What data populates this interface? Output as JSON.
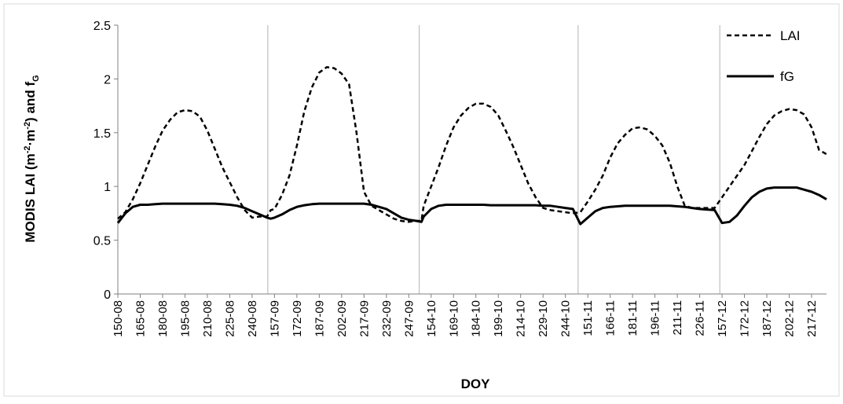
{
  "chart_data": {
    "type": "line",
    "xlabel": "DOY",
    "ylabel_main": "MODIS LAI (m",
    "ylabel_sup1": "-2",
    "ylabel_mid": "·m",
    "ylabel_sup2": "-2",
    "ylabel_end": ") and f",
    "ylabel_sub": "G",
    "ylim": [
      0,
      2.5
    ],
    "yticks": [
      "0",
      "0.5",
      "1",
      "1.5",
      "2",
      "2.5"
    ],
    "ytick_values": [
      0,
      0.5,
      1,
      1.5,
      2,
      2.5
    ],
    "legend_position": "top-right",
    "xticks": [
      "150-08",
      "165-08",
      "180-08",
      "195-08",
      "210-08",
      "225-08",
      "240-08",
      "157-09",
      "172-09",
      "187-09",
      "202-09",
      "217-09",
      "232-09",
      "247-09",
      "154-10",
      "169-10",
      "184-10",
      "199-10",
      "214-10",
      "229-10",
      "244-10",
      "151-11",
      "166-11",
      "181-11",
      "196-11",
      "211-11",
      "226-11",
      "157-12",
      "172-12",
      "187-12",
      "202-12",
      "217-12"
    ],
    "xtick_index": [
      0,
      3,
      6,
      9,
      12,
      15,
      18,
      21,
      24,
      27,
      30,
      33,
      36,
      39,
      42,
      45,
      48,
      51,
      54,
      57,
      60,
      63,
      66,
      69,
      72,
      75,
      78,
      81,
      84,
      87,
      90,
      93
    ],
    "x_max_index": 95,
    "year_separators_index": [
      20.1,
      40.4,
      61.7,
      80.7
    ],
    "series": [
      {
        "name": "LAI",
        "style": "dashed",
        "x": [
          0,
          1,
          2,
          3,
          4,
          5,
          6,
          7,
          8,
          9,
          10,
          11,
          12,
          13,
          14,
          15,
          16,
          17,
          18,
          19,
          20,
          20.5,
          21,
          22,
          23,
          24,
          25,
          26,
          27,
          28,
          29,
          30,
          31,
          32,
          33,
          34,
          35,
          36,
          37,
          38,
          39,
          40,
          40.7,
          41,
          42,
          43,
          44,
          45,
          46,
          47,
          48,
          49,
          50,
          51,
          52,
          53,
          54,
          55,
          56,
          57,
          58,
          59,
          60,
          61,
          62,
          63,
          64,
          65,
          66,
          67,
          68,
          69,
          70,
          71,
          72,
          73,
          74,
          75,
          76,
          77,
          78,
          79,
          80,
          81,
          82,
          83,
          84,
          85,
          86,
          87,
          88,
          89,
          90,
          91,
          92,
          93,
          94,
          95
        ],
        "y": [
          0.7,
          0.76,
          0.88,
          1.03,
          1.2,
          1.37,
          1.52,
          1.62,
          1.69,
          1.71,
          1.7,
          1.65,
          1.52,
          1.35,
          1.18,
          1.04,
          0.9,
          0.78,
          0.71,
          0.72,
          0.72,
          0.78,
          0.79,
          0.92,
          1.1,
          1.38,
          1.7,
          1.92,
          2.06,
          2.11,
          2.1,
          2.05,
          1.95,
          1.5,
          0.95,
          0.82,
          0.78,
          0.74,
          0.7,
          0.68,
          0.67,
          0.68,
          0.68,
          0.82,
          1.0,
          1.18,
          1.38,
          1.55,
          1.66,
          1.73,
          1.77,
          1.77,
          1.74,
          1.66,
          1.52,
          1.37,
          1.2,
          1.03,
          0.9,
          0.8,
          0.78,
          0.77,
          0.76,
          0.75,
          0.76,
          0.86,
          0.97,
          1.1,
          1.27,
          1.4,
          1.48,
          1.54,
          1.55,
          1.53,
          1.47,
          1.38,
          1.22,
          1.0,
          0.82,
          0.8,
          0.8,
          0.8,
          0.8,
          0.9,
          1.0,
          1.1,
          1.2,
          1.33,
          1.46,
          1.58,
          1.66,
          1.7,
          1.72,
          1.71,
          1.67,
          1.55,
          1.34,
          1.3
        ]
      },
      {
        "name": "fG",
        "style": "solid",
        "x": [
          0,
          1,
          2,
          3,
          4,
          5,
          6,
          7,
          8,
          9,
          10,
          11,
          12,
          13,
          14,
          15,
          16,
          17,
          18,
          19,
          20,
          20.5,
          21,
          22,
          23,
          24,
          25,
          26,
          27,
          28,
          29,
          30,
          31,
          32,
          33,
          34,
          35,
          36,
          37,
          38,
          39,
          40,
          40.7,
          41,
          42,
          43,
          44,
          45,
          46,
          47,
          48,
          49,
          50,
          51,
          52,
          53,
          54,
          55,
          56,
          57,
          58,
          59,
          60,
          61,
          62,
          63,
          64,
          65,
          66,
          67,
          68,
          69,
          70,
          71,
          72,
          73,
          74,
          75,
          76,
          77,
          78,
          79,
          80,
          81,
          82,
          83,
          84,
          85,
          86,
          87,
          88,
          89,
          90,
          91,
          92,
          93,
          94,
          95
        ],
        "y": [
          0.66,
          0.75,
          0.81,
          0.83,
          0.83,
          0.835,
          0.84,
          0.84,
          0.84,
          0.84,
          0.84,
          0.84,
          0.84,
          0.84,
          0.835,
          0.83,
          0.82,
          0.8,
          0.77,
          0.74,
          0.71,
          0.7,
          0.71,
          0.74,
          0.78,
          0.81,
          0.825,
          0.835,
          0.84,
          0.84,
          0.84,
          0.84,
          0.84,
          0.84,
          0.84,
          0.83,
          0.81,
          0.79,
          0.75,
          0.71,
          0.69,
          0.68,
          0.67,
          0.72,
          0.79,
          0.82,
          0.83,
          0.83,
          0.83,
          0.83,
          0.83,
          0.83,
          0.825,
          0.825,
          0.825,
          0.825,
          0.825,
          0.825,
          0.825,
          0.82,
          0.82,
          0.81,
          0.8,
          0.79,
          0.65,
          0.71,
          0.77,
          0.8,
          0.81,
          0.815,
          0.82,
          0.82,
          0.82,
          0.82,
          0.82,
          0.82,
          0.82,
          0.815,
          0.81,
          0.8,
          0.79,
          0.785,
          0.78,
          0.66,
          0.67,
          0.73,
          0.82,
          0.9,
          0.95,
          0.98,
          0.99,
          0.99,
          0.99,
          0.99,
          0.97,
          0.95,
          0.92,
          0.88
        ]
      }
    ]
  }
}
